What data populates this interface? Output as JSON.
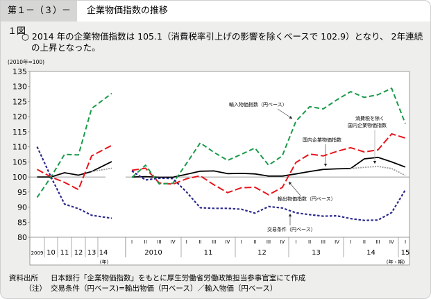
{
  "header": {
    "figure_number": "第１－（３）－１図",
    "title": "企業物価指数の推移"
  },
  "intro": "○ 2014 年の企業物価指数は 105.1（消費税率引上げの影響を除くベースで 102.9）となり、 2年連続の上昇となった。",
  "source": {
    "label1": "資料出所",
    "text1": "日本銀行「企業物価指数」をもとに厚生労働省労働政策担当参事官室にて作成",
    "label2": "（注）",
    "text2": "交易条件（円ベース)=輸出物価（円ベース）／輸入物価（円ベース）"
  },
  "colors": {
    "domestic": "#000000",
    "domestic_ex_tax": "#999999",
    "export": "#e8141b",
    "import": "#1a9a48",
    "terms": "#2b2a8c",
    "page_bg": "#eeeeec"
  },
  "chart_data": {
    "type": "line",
    "unit_label": "(2010年=100)",
    "ylim": [
      80,
      135
    ],
    "yticks": [
      80,
      85,
      90,
      95,
      100,
      105,
      110,
      115,
      120,
      125,
      130,
      135
    ],
    "reference_line": 100,
    "annual": {
      "categories": [
        "2009",
        "10",
        "11",
        "12",
        "13",
        "14"
      ],
      "axis_suffix": "(年)"
    },
    "quarterly": {
      "quarters": [
        "I",
        "II",
        "III",
        "IV",
        "I",
        "II",
        "III",
        "IV",
        "I",
        "II",
        "III",
        "IV",
        "I",
        "II",
        "III",
        "IV",
        "I",
        "II",
        "III",
        "IV",
        "I"
      ],
      "years": [
        "2010",
        "11",
        "12",
        "13",
        "14",
        "15"
      ],
      "axis_suffix": "(年・期)"
    },
    "series": [
      {
        "key": "domestic",
        "name": "国内企業物価指数",
        "style": "solid",
        "annual": [
          100.0,
          100,
          101.4,
          100.6,
          101.8,
          105.1
        ],
        "quarterly": [
          100.0,
          100.1,
          99.9,
          99.9,
          100.9,
          101.9,
          102.0,
          101.1,
          101.2,
          101.0,
          100.3,
          100.3,
          101.0,
          101.8,
          102.5,
          102.7,
          102.8,
          106.0,
          106.5,
          105.0,
          103.3
        ]
      },
      {
        "key": "domestic_ex_tax",
        "name": "消費税を除く国内企業物価指数",
        "style": "dotted",
        "annual": [
          null,
          null,
          null,
          null,
          101.8,
          102.9
        ],
        "quarterly": [
          null,
          null,
          null,
          null,
          null,
          null,
          null,
          null,
          null,
          null,
          null,
          null,
          null,
          null,
          null,
          null,
          102.8,
          103.2,
          103.5,
          102.8,
          100.5
        ]
      },
      {
        "key": "export",
        "name": "輸出物価指数（円ベース）",
        "style": "long-dash",
        "annual": [
          102.5,
          100,
          98.2,
          95.8,
          107.0,
          110.5
        ],
        "quarterly": [
          102.2,
          102.9,
          98.0,
          97.6,
          99.4,
          100.4,
          97.4,
          94.8,
          96.4,
          96.6,
          94.1,
          96.5,
          104.8,
          107.6,
          107.0,
          108.5,
          109.7,
          108.3,
          109.0,
          114.3,
          112.9
        ]
      },
      {
        "key": "import",
        "name": "輸入物価指数（円ベース）",
        "style": "dash",
        "annual": [
          93.2,
          100,
          107.5,
          107.3,
          122.7,
          127.7
        ],
        "quarterly": [
          99.8,
          103.9,
          97.7,
          97.9,
          104.5,
          111.3,
          108.2,
          105.5,
          107.5,
          109.6,
          103.9,
          107.0,
          118.5,
          123.3,
          122.6,
          125.6,
          128.3,
          126.4,
          127.3,
          129.4,
          117.7
        ]
      },
      {
        "key": "terms",
        "name": "交易条件（円ベース）",
        "style": "short-dash",
        "annual": [
          110.0,
          100,
          91.0,
          89.5,
          87.3,
          86.3
        ],
        "quarterly": [
          102.0,
          99.0,
          99.6,
          99.5,
          95.0,
          89.8,
          89.6,
          89.6,
          89.3,
          88.0,
          90.2,
          89.7,
          88.1,
          87.5,
          87.0,
          87.1,
          86.2,
          85.6,
          85.7,
          88.2,
          95.7
        ]
      }
    ],
    "annotations": {
      "import": "輸入物価指数（円ベース）",
      "ex_tax_1": "消費税を除く",
      "ex_tax_2": "国内企業物価指数",
      "domestic": "国内企業物価指数",
      "export": "輸出物価指数（円ベース）",
      "terms": "交易条件（円ベース）"
    }
  }
}
